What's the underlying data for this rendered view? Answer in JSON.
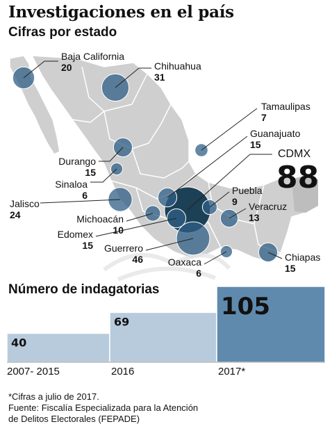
{
  "title": "Investigaciones en el país",
  "subtitle": "Cifras por estado",
  "bars_title": "Número de indagatorias",
  "footnote": "*Cifras a julio de 2017.",
  "source_line1": "Fuente: Fiscalía Especializada para la Atención",
  "source_line2": "de Delitos Electorales (FEPADE)",
  "colors": {
    "bubble": "#2f5f86",
    "bubble_big": "#12384f",
    "land": "#cfcfcf",
    "bar_light": "#b8cbdc",
    "bar_dark": "#5f8aad"
  },
  "chart_data": [
    {
      "type": "scatter",
      "title": "Cifras por estado",
      "states": [
        {
          "name": "Baja California",
          "value": 20
        },
        {
          "name": "Chihuahua",
          "value": 31
        },
        {
          "name": "Tamaulipas",
          "value": 7
        },
        {
          "name": "Guanajuato",
          "value": 15
        },
        {
          "name": "CDMX",
          "value": 88
        },
        {
          "name": "Durango",
          "value": 15
        },
        {
          "name": "Sinaloa",
          "value": 6
        },
        {
          "name": "Jalisco",
          "value": 24
        },
        {
          "name": "Puebla",
          "value": 9
        },
        {
          "name": "Veracruz",
          "value": 13
        },
        {
          "name": "Michoacán",
          "value": 10
        },
        {
          "name": "Edomex",
          "value": 15
        },
        {
          "name": "Guerrero",
          "value": 46
        },
        {
          "name": "Oaxaca",
          "value": 6
        },
        {
          "name": "Chiapas",
          "value": 15
        }
      ]
    },
    {
      "type": "bar",
      "title": "Número de indagatorias",
      "categories": [
        "2007- 2015",
        "2016",
        "2017*"
      ],
      "values": [
        40,
        69,
        105
      ],
      "ylim": [
        0,
        105
      ]
    }
  ]
}
